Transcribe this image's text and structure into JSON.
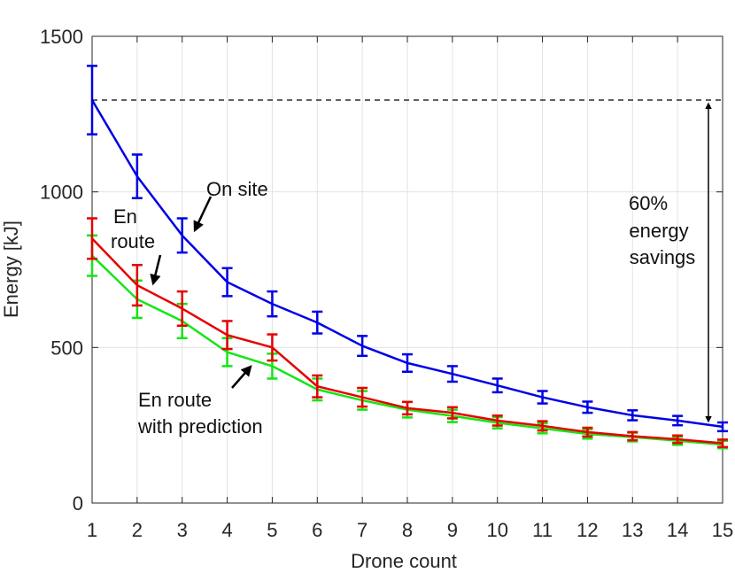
{
  "chart_data": {
    "type": "line",
    "title": "",
    "xlabel": "Drone count",
    "ylabel": "Energy [kJ]",
    "xlim": [
      1,
      15
    ],
    "ylim": [
      0,
      1500
    ],
    "x": [
      1,
      2,
      3,
      4,
      5,
      6,
      7,
      8,
      9,
      10,
      11,
      12,
      13,
      14,
      15
    ],
    "xticks": [
      1,
      2,
      3,
      4,
      5,
      6,
      7,
      8,
      9,
      10,
      11,
      12,
      13,
      14,
      15
    ],
    "yticks": [
      0,
      500,
      1000,
      1500
    ],
    "grid": true,
    "series": [
      {
        "name": "On site",
        "color": "#0000e6",
        "values": [
          1295,
          1050,
          860,
          710,
          640,
          580,
          505,
          450,
          415,
          378,
          340,
          308,
          282,
          265,
          245
        ],
        "errors": [
          110,
          70,
          55,
          45,
          40,
          35,
          32,
          28,
          25,
          22,
          20,
          18,
          16,
          15,
          14
        ]
      },
      {
        "name": "En route",
        "color": "#e60000",
        "values": [
          850,
          700,
          625,
          540,
          500,
          375,
          340,
          305,
          290,
          265,
          248,
          228,
          215,
          205,
          192
        ],
        "errors": [
          65,
          65,
          55,
          45,
          42,
          35,
          30,
          20,
          18,
          16,
          15,
          14,
          13,
          12,
          12
        ]
      },
      {
        "name": "En route with prediction",
        "color": "#14e614",
        "values": [
          795,
          655,
          585,
          485,
          440,
          365,
          330,
          300,
          280,
          258,
          240,
          222,
          212,
          200,
          188
        ],
        "errors": [
          65,
          60,
          55,
          45,
          40,
          35,
          30,
          25,
          20,
          18,
          16,
          15,
          14,
          13,
          12
        ]
      }
    ],
    "reference_line": {
      "value": 1295,
      "style": "dashed"
    },
    "annotations": [
      {
        "id": "on_site",
        "lines": [
          "On site"
        ]
      },
      {
        "id": "en_route",
        "lines": [
          "En",
          "route"
        ]
      },
      {
        "id": "prediction",
        "lines": [
          "En route",
          "with prediction"
        ]
      },
      {
        "id": "savings",
        "lines": [
          "60%",
          "energy",
          "savings"
        ]
      }
    ]
  }
}
